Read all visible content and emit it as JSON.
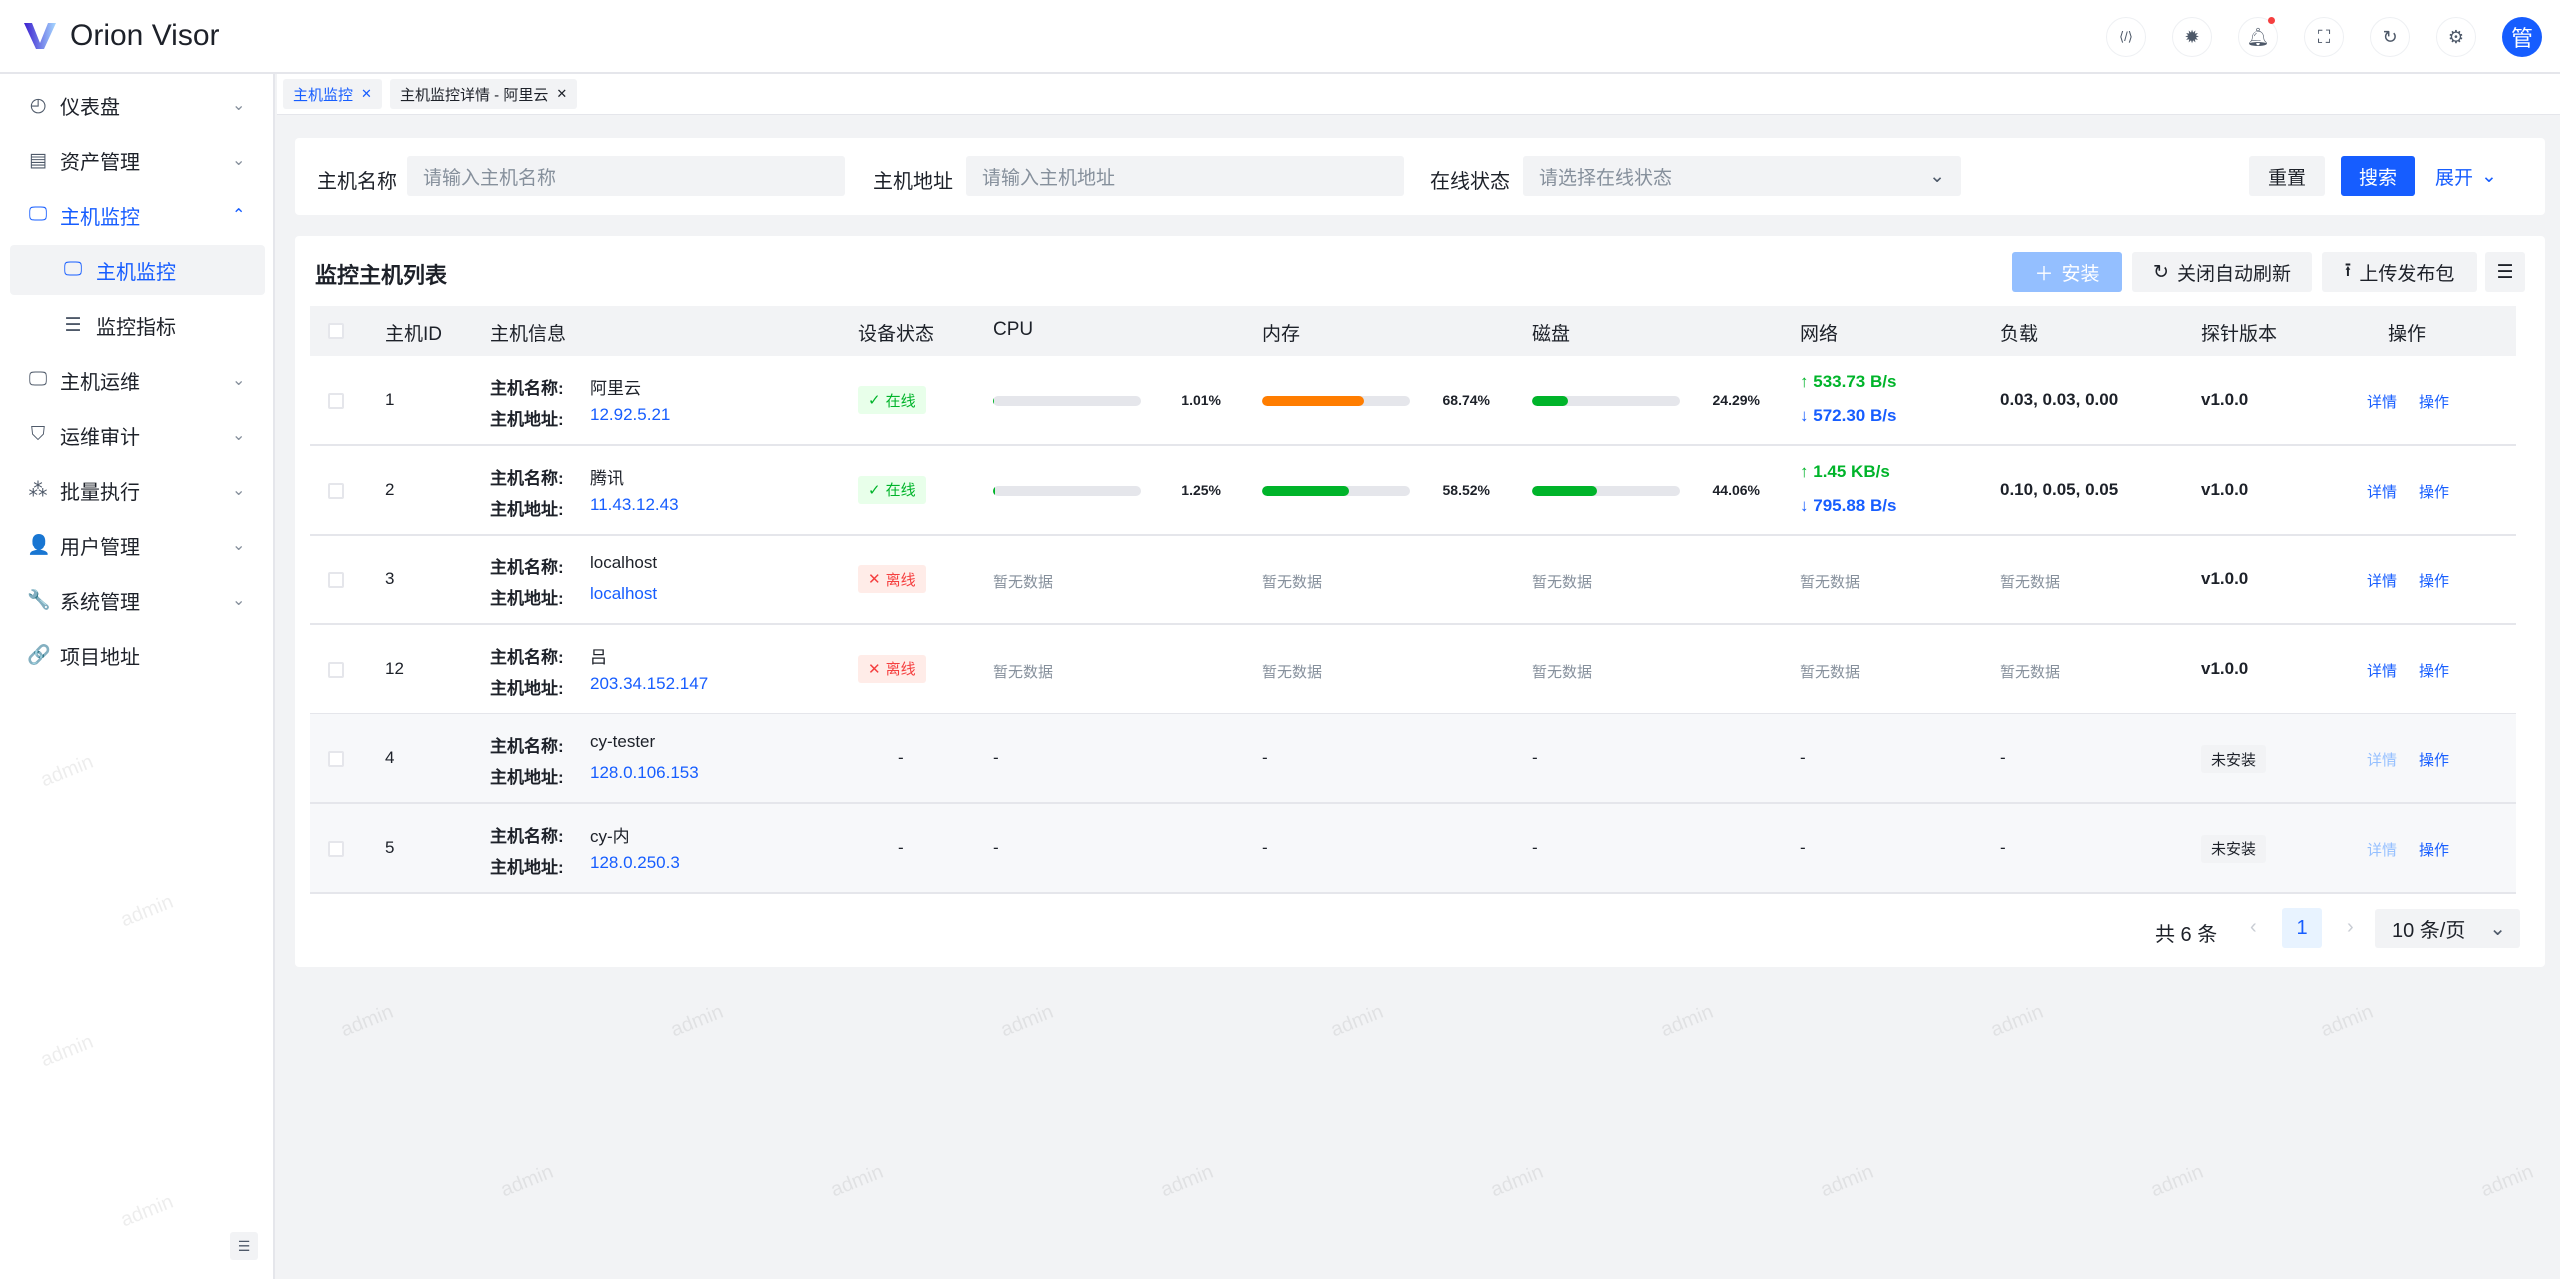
{
  "app": {
    "title": "Orion Visor",
    "avatar": "管",
    "watermark": "admin"
  },
  "header_icons": [
    "code-icon",
    "theme-sun-icon",
    "bell-icon",
    "fullscreen-icon",
    "refresh-icon",
    "settings-icon"
  ],
  "sidebar": {
    "items": [
      {
        "label": "仪表盘",
        "icon": "dashboard-icon",
        "glyph": "◴",
        "chev": "⌄"
      },
      {
        "label": "资产管理",
        "icon": "server-icon",
        "glyph": "▤",
        "chev": "⌄"
      },
      {
        "label": "主机监控",
        "icon": "monitor-chart-icon",
        "glyph": "🖵",
        "chev": "⌃",
        "active": true
      },
      {
        "label": "主机监控",
        "icon": "monitor-chart-icon",
        "glyph": "🖵",
        "sub": true,
        "selected": true
      },
      {
        "label": "监控指标",
        "icon": "list-icon",
        "glyph": "☰",
        "sub": true
      },
      {
        "label": "主机运维",
        "icon": "desktop-icon",
        "glyph": "🖵",
        "chev": "⌄"
      },
      {
        "label": "运维审计",
        "icon": "shield-icon",
        "glyph": "⛉",
        "chev": "⌄"
      },
      {
        "label": "批量执行",
        "icon": "cluster-icon",
        "glyph": "⁂",
        "chev": "⌄"
      },
      {
        "label": "用户管理",
        "icon": "user-icon",
        "glyph": "👤",
        "chev": "⌄"
      },
      {
        "label": "系统管理",
        "icon": "wrench-icon",
        "glyph": "🔧",
        "chev": "⌄"
      },
      {
        "label": "项目地址",
        "icon": "link-icon",
        "glyph": "🔗"
      }
    ]
  },
  "tabs": [
    {
      "label": "主机监控",
      "active": true
    },
    {
      "label": "主机监控详情 - 阿里云"
    }
  ],
  "search": {
    "name_label": "主机名称",
    "name_placeholder": "请输入主机名称",
    "address_label": "主机地址",
    "address_placeholder": "请输入主机地址",
    "status_label": "在线状态",
    "status_placeholder": "请选择在线状态",
    "reset": "重置",
    "search": "搜索",
    "expand": "展开"
  },
  "table": {
    "title": "监控主机列表",
    "toolbar": {
      "install": "安装",
      "auto_refresh": "关闭自动刷新",
      "upload": "上传发布包"
    },
    "columns": [
      "主机ID",
      "主机信息",
      "设备状态",
      "CPU",
      "内存",
      "磁盘",
      "网络",
      "负载",
      "探针版本",
      "操作"
    ],
    "name_key": "主机名称:",
    "addr_key": "主机地址:",
    "actions": {
      "detail": "详情",
      "op": "操作"
    },
    "rows": [
      {
        "id": "1",
        "name": "阿里云",
        "address": "12.92.5.21",
        "status": "在线",
        "online": true,
        "cpu": "1.01%",
        "cpu_v": 1.01,
        "mem": "68.74%",
        "mem_v": 68.74,
        "disk": "24.29%",
        "disk_v": 24.29,
        "up": "533.73 B/s",
        "down": "572.30 B/s",
        "load": "0.03, 0.03, 0.00",
        "probe": "v1.0.0"
      },
      {
        "id": "2",
        "name": "腾讯",
        "address": "11.43.12.43",
        "status": "在线",
        "online": true,
        "cpu": "1.25%",
        "cpu_v": 1.25,
        "mem": "58.52%",
        "mem_v": 58.52,
        "disk": "44.06%",
        "disk_v": 44.06,
        "up": "1.45 KB/s",
        "down": "795.88 B/s",
        "load": "0.10, 0.05, 0.05",
        "probe": "v1.0.0"
      },
      {
        "id": "3",
        "name": "localhost",
        "address": "localhost",
        "status": "离线",
        "online": false,
        "nodata": "暂无数据",
        "probe": "v1.0.0"
      },
      {
        "id": "12",
        "name": "吕",
        "address": "203.34.152.147",
        "status": "离线",
        "online": false,
        "nodata": "暂无数据",
        "probe": "v1.0.0"
      },
      {
        "id": "4",
        "name": "cy-tester",
        "address": "128.0.106.153",
        "dash": "-",
        "probe_tag": "未安装"
      },
      {
        "id": "5",
        "name": "cy-内",
        "address": "128.0.250.3",
        "dash": "-",
        "probe_tag": "未安装"
      }
    ]
  },
  "pagination": {
    "total": "共 6 条",
    "page": "1",
    "page_size": "10 条/页"
  },
  "colors": {
    "primary": "#165dff",
    "online": "#00b42a",
    "offline": "#f53f3f",
    "mem_high": "#ff7d00",
    "bar_green": "#00b42a"
  }
}
